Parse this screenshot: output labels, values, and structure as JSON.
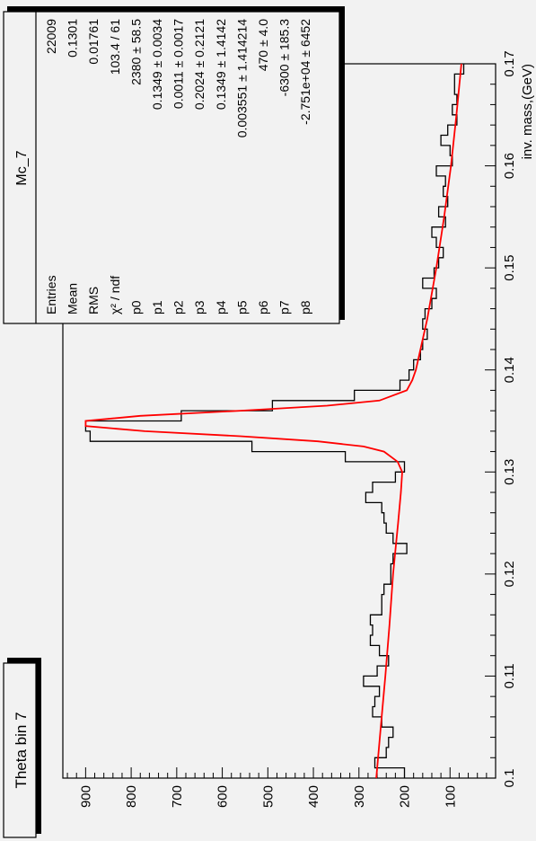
{
  "title_box": {
    "text": "Theta bin 7"
  },
  "stats_box": {
    "name": "Mc_7",
    "rows": [
      {
        "label": "Entries",
        "value": "22009"
      },
      {
        "label": "Mean",
        "value": "0.1301"
      },
      {
        "label": "RMS",
        "value": "0.01761"
      },
      {
        "label": "χ² / ndf",
        "value": "103.4 / 61"
      },
      {
        "label": "p0",
        "value": "2380 ± 58.5"
      },
      {
        "label": "p1",
        "value": "0.1349 ± 0.0034"
      },
      {
        "label": "p2",
        "value": "0.0011 ± 0.0017"
      },
      {
        "label": "p3",
        "value": "0.2024 ± 0.2121"
      },
      {
        "label": "p4",
        "value": "0.1349 ± 1.4142"
      },
      {
        "label": "p5",
        "value": "0.003551 ± 1.414214"
      },
      {
        "label": "p6",
        "value": "470 ± 4.0"
      },
      {
        "label": "p7",
        "value": "-6300 ± 185.3"
      },
      {
        "label": "p8",
        "value": "-2.751e+04 ± 6452"
      }
    ]
  },
  "chart_data": {
    "type": "histogram",
    "xlabel": "inv. mass,(GeV)",
    "ylabel": "",
    "xlim": [
      0.1,
      0.17
    ],
    "ylim": [
      0,
      950
    ],
    "xticks": [
      "0.1",
      "0.11",
      "0.12",
      "0.13",
      "0.14",
      "0.15",
      "0.16",
      "0.17"
    ],
    "yticks": [
      "100",
      "200",
      "300",
      "400",
      "500",
      "600",
      "700",
      "800",
      "900"
    ],
    "colors": {
      "histogram": "#000000",
      "fit": "#ff0000",
      "background": "#f2f2f2"
    },
    "histogram": {
      "bin_edges_start": 0.1,
      "bin_width": 0.001,
      "counts": [
        200,
        265,
        240,
        235,
        225,
        250,
        270,
        265,
        255,
        290,
        260,
        235,
        255,
        275,
        270,
        275,
        250,
        250,
        245,
        230,
        230,
        225,
        195,
        225,
        240,
        245,
        250,
        285,
        270,
        220,
        200,
        330,
        535,
        890,
        900,
        690,
        490,
        310,
        210,
        190,
        180,
        165,
        160,
        150,
        160,
        155,
        140,
        130,
        160,
        135,
        125,
        115,
        130,
        140,
        110,
        125,
        105,
        115,
        110,
        130,
        95,
        100,
        120,
        105,
        85,
        95,
        85,
        90,
        90,
        70
      ]
    },
    "fit": {
      "x": [
        0.1,
        0.105,
        0.11,
        0.115,
        0.12,
        0.125,
        0.128,
        0.13,
        0.131,
        0.132,
        0.1325,
        0.133,
        0.1335,
        0.134,
        0.1345,
        0.135,
        0.1355,
        0.136,
        0.1365,
        0.137,
        0.138,
        0.139,
        0.14,
        0.145,
        0.15,
        0.155,
        0.16,
        0.165,
        0.17
      ],
      "y": [
        262,
        252,
        242,
        233,
        225,
        214,
        208,
        205,
        215,
        245,
        290,
        390,
        560,
        770,
        900,
        900,
        780,
        560,
        370,
        255,
        195,
        183,
        175,
        150,
        130,
        113,
        98,
        86,
        75
      ]
    }
  }
}
